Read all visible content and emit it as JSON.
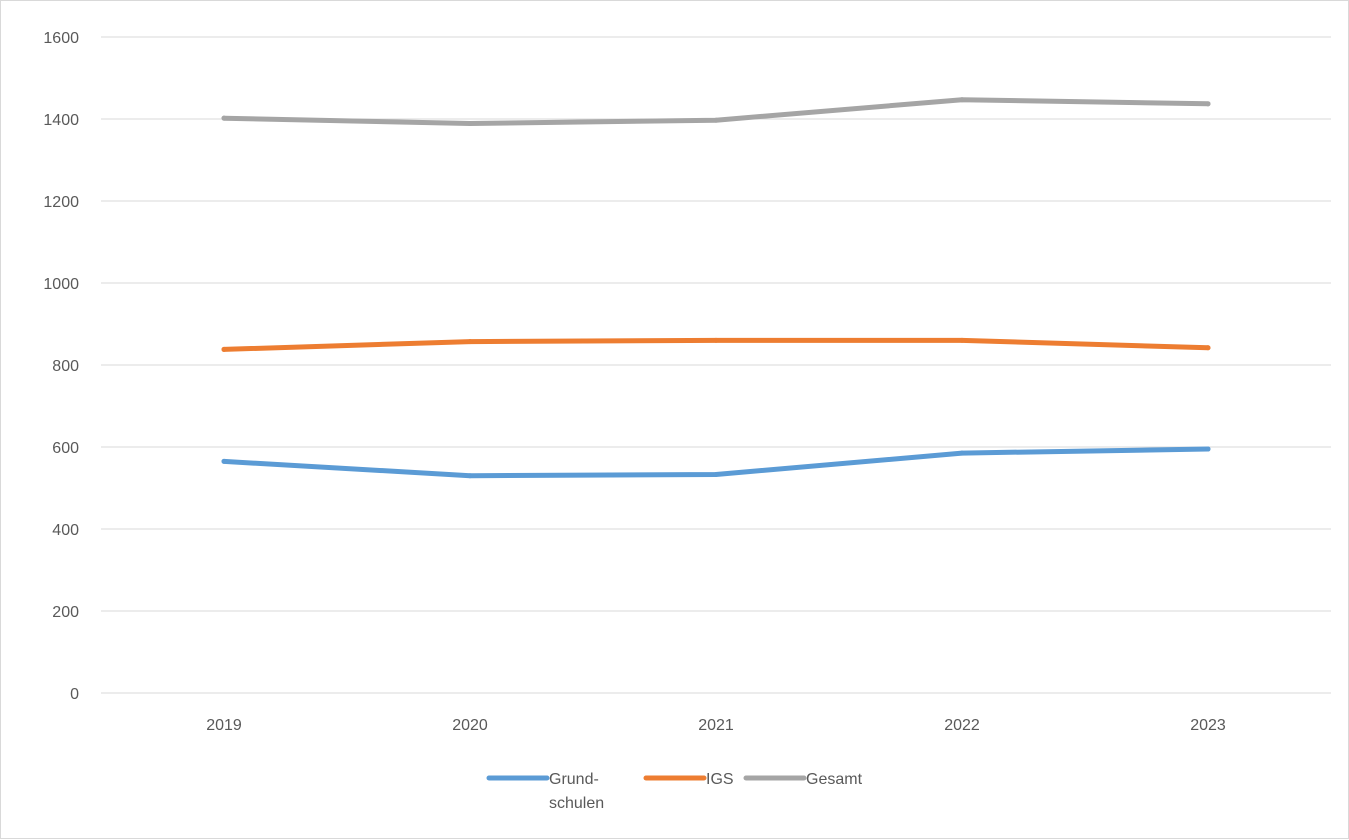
{
  "chart_data": {
    "type": "line",
    "categories": [
      "2019",
      "2020",
      "2021",
      "2022",
      "2023"
    ],
    "series": [
      {
        "name": "Grund-\nschulen",
        "color": "#5b9bd5",
        "values": [
          565,
          530,
          533,
          585,
          595
        ]
      },
      {
        "name": "IGS",
        "color": "#ed7d31",
        "values": [
          838,
          857,
          860,
          860,
          842
        ]
      },
      {
        "name": "Gesamt",
        "color": "#a5a5a5",
        "values": [
          1402,
          1389,
          1397,
          1447,
          1437
        ]
      }
    ],
    "ylim": [
      0,
      1600
    ],
    "yticks": [
      0,
      200,
      400,
      600,
      800,
      1000,
      1200,
      1400,
      1600
    ],
    "grid": true,
    "legend_position": "bottom"
  }
}
